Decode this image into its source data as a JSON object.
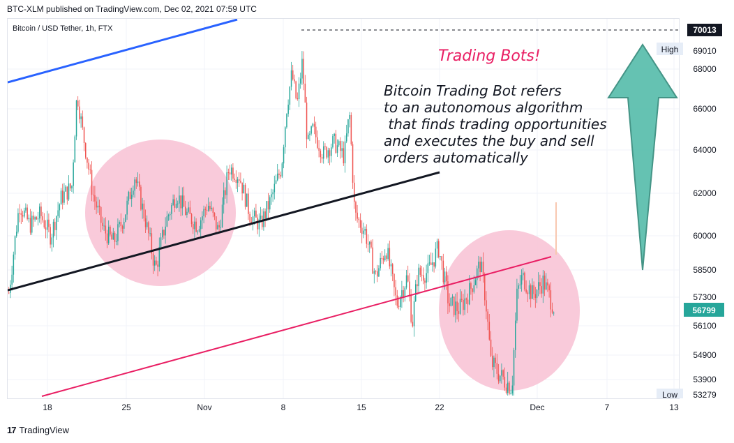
{
  "header": {
    "published": "BTC-XLM published on TradingView.com, Dec 02, 2021 07:59 UTC"
  },
  "symbol_legend": "Bitcoin / USD Tether, 1h, FTX",
  "footer": {
    "brand": "TradingView",
    "logo": "17"
  },
  "colors": {
    "up": "#26a69a",
    "down": "#ef5350",
    "circle": "#f8c1d3",
    "blue_line": "#2962ff",
    "black_line": "#131722",
    "pink_line": "#e91e63",
    "arrow": "#5dbfae",
    "last_price_bg": "#26a69a"
  },
  "annotations": {
    "headline": "Trading Bots!",
    "body": [
      "Bitcoin Trading Bot refers",
      "to an autonomous algorithm",
      " that finds trading opportunities",
      "and executes the buy and sell",
      "orders automatically"
    ]
  },
  "chart_data": {
    "type": "candlestick",
    "title": "Bitcoin / USD Tether, 1h, FTX",
    "x_ticks": [
      "18",
      "25",
      "Nov",
      "8",
      "15",
      "22",
      "Dec",
      "7",
      "13"
    ],
    "y_ticks": [
      53900,
      54900,
      56100,
      57300,
      58500,
      60000,
      62000,
      64000,
      66000,
      68000
    ],
    "price_labels": {
      "high_label": "High",
      "high": "69010",
      "low_label": "Low",
      "low": "53279",
      "current": "56799",
      "top_marker": "70013"
    },
    "price_path": [
      [
        0,
        57500
      ],
      [
        1,
        61500
      ],
      [
        2,
        60500
      ],
      [
        3,
        61000
      ],
      [
        4,
        60000
      ],
      [
        5,
        61800
      ],
      [
        6,
        62300
      ],
      [
        6.5,
        66800
      ],
      [
        7,
        65000
      ],
      [
        8,
        62000
      ],
      [
        9,
        60300
      ],
      [
        10,
        59700
      ],
      [
        11,
        60900
      ],
      [
        12,
        62800
      ],
      [
        13,
        60800
      ],
      [
        14,
        58500
      ],
      [
        15,
        60700
      ],
      [
        16,
        62000
      ],
      [
        17,
        61000
      ],
      [
        18,
        60500
      ],
      [
        19,
        61500
      ],
      [
        20,
        60200
      ],
      [
        21,
        63200
      ],
      [
        22,
        62800
      ],
      [
        23,
        61000
      ],
      [
        24,
        60500
      ],
      [
        25,
        61700
      ],
      [
        26,
        63200
      ],
      [
        26.5,
        66000
      ],
      [
        27,
        67800
      ],
      [
        27.5,
        66200
      ],
      [
        28,
        68400
      ],
      [
        28.5,
        64200
      ],
      [
        29,
        65000
      ],
      [
        30,
        63800
      ],
      [
        31,
        64400
      ],
      [
        32,
        63700
      ],
      [
        32.5,
        65800
      ],
      [
        33,
        61000
      ],
      [
        34,
        60200
      ],
      [
        35,
        58200
      ],
      [
        36,
        59500
      ],
      [
        37,
        57000
      ],
      [
        38,
        58200
      ],
      [
        38.5,
        56200
      ],
      [
        39,
        58300
      ],
      [
        40,
        58400
      ],
      [
        41,
        59500
      ],
      [
        42,
        57000
      ],
      [
        43,
        56800
      ],
      [
        44,
        57600
      ],
      [
        45,
        58800
      ],
      [
        45.5,
        57200
      ],
      [
        46,
        54600
      ],
      [
        47,
        54000
      ],
      [
        48,
        53600
      ],
      [
        48.5,
        57500
      ],
      [
        49,
        58200
      ],
      [
        50,
        57400
      ],
      [
        51,
        58000
      ],
      [
        52,
        56900
      ]
    ],
    "ylim": [
      53279,
      70013
    ]
  }
}
